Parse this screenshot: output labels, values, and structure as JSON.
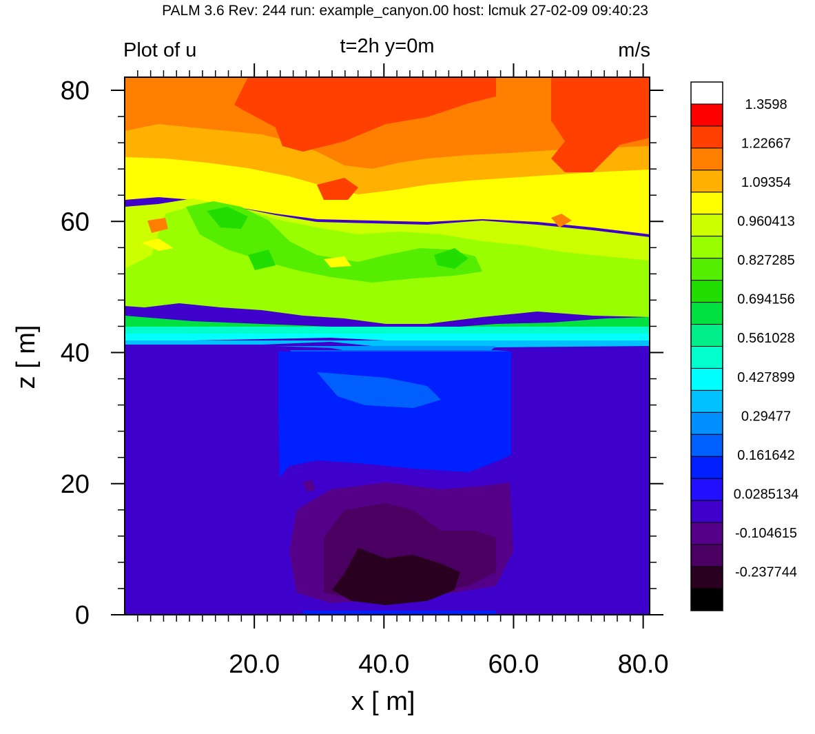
{
  "header": "PALM 3.6  Rev: 244  run: example_canyon.00  host: lcmuk  27-02-09 09:40:23",
  "chart_data": {
    "type": "heatmap",
    "title_left": "Plot of u",
    "title_center": "t=2h  y=0m",
    "title_right": "m/s",
    "xlabel": "x [ m]",
    "ylabel": "z [ m]",
    "xlim": [
      0,
      81
    ],
    "ylim": [
      0,
      82
    ],
    "x_ticks": [
      {
        "value": 20,
        "label": "20.0"
      },
      {
        "value": 40,
        "label": "40.0"
      },
      {
        "value": 60,
        "label": "60.0"
      },
      {
        "value": 80,
        "label": "80.0"
      }
    ],
    "y_ticks": [
      {
        "value": 0,
        "label": "0"
      },
      {
        "value": 20,
        "label": "20"
      },
      {
        "value": 40,
        "label": "40"
      },
      {
        "value": 60,
        "label": "60"
      },
      {
        "value": 80,
        "label": "80"
      }
    ],
    "colorbar": {
      "colors": [
        "#ffffff",
        "#ff0000",
        "#ff4000",
        "#ff8000",
        "#ffb000",
        "#ffff00",
        "#ccff00",
        "#99ff00",
        "#55ee00",
        "#22dd00",
        "#00e040",
        "#00ee88",
        "#00ffcc",
        "#00ffff",
        "#00c0ff",
        "#0090ff",
        "#0060ff",
        "#0020ff",
        "#2010ff",
        "#4000cc",
        "#550088",
        "#4a0060",
        "#2a0020",
        "#000000"
      ],
      "labels": [
        "1.3598",
        "1.22667",
        "1.09354",
        "0.960413",
        "0.827285",
        "0.694156",
        "0.561028",
        "0.427899",
        "0.29477",
        "0.161642",
        "0.0285134",
        "-0.104615",
        "-0.237744"
      ]
    }
  }
}
